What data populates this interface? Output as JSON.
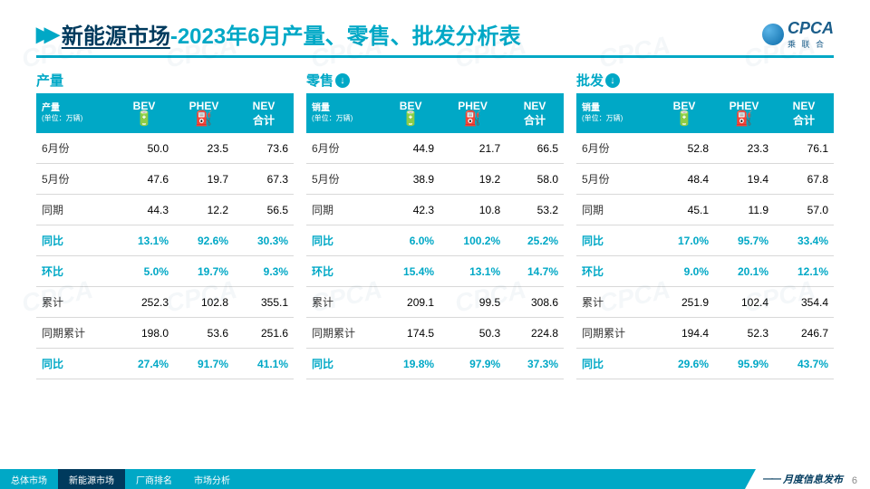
{
  "header": {
    "title_main": "新能源市场",
    "title_sub": "-2023年6月产量、零售、批发分析表",
    "logo_text": "CPCA",
    "logo_sub": "乘 联 合"
  },
  "colors": {
    "accent": "#00a8c6",
    "dark": "#003a5d",
    "row_border": "#d8d8d8"
  },
  "column_headers": {
    "bev": "BEV",
    "phev": "PHEV",
    "nev": "NEV\n合计",
    "unit": "(单位：万辆)"
  },
  "tables": [
    {
      "title": "产量",
      "arrow": false,
      "corner_label": "产量",
      "rows": [
        {
          "label": "6月份",
          "bev": "50.0",
          "phev": "23.5",
          "nev": "73.6",
          "hl": false
        },
        {
          "label": "5月份",
          "bev": "47.6",
          "phev": "19.7",
          "nev": "67.3",
          "hl": false
        },
        {
          "label": "同期",
          "bev": "44.3",
          "phev": "12.2",
          "nev": "56.5",
          "hl": false
        },
        {
          "label": "同比",
          "bev": "13.1%",
          "phev": "92.6%",
          "nev": "30.3%",
          "hl": true
        },
        {
          "label": "环比",
          "bev": "5.0%",
          "phev": "19.7%",
          "nev": "9.3%",
          "hl": true
        },
        {
          "label": "累计",
          "bev": "252.3",
          "phev": "102.8",
          "nev": "355.1",
          "hl": false
        },
        {
          "label": "同期累计",
          "bev": "198.0",
          "phev": "53.6",
          "nev": "251.6",
          "hl": false
        },
        {
          "label": "同比",
          "bev": "27.4%",
          "phev": "91.7%",
          "nev": "41.1%",
          "hl": true
        }
      ]
    },
    {
      "title": "零售",
      "arrow": true,
      "corner_label": "销量",
      "rows": [
        {
          "label": "6月份",
          "bev": "44.9",
          "phev": "21.7",
          "nev": "66.5",
          "hl": false
        },
        {
          "label": "5月份",
          "bev": "38.9",
          "phev": "19.2",
          "nev": "58.0",
          "hl": false
        },
        {
          "label": "同期",
          "bev": "42.3",
          "phev": "10.8",
          "nev": "53.2",
          "hl": false
        },
        {
          "label": "同比",
          "bev": "6.0%",
          "phev": "100.2%",
          "nev": "25.2%",
          "hl": true
        },
        {
          "label": "环比",
          "bev": "15.4%",
          "phev": "13.1%",
          "nev": "14.7%",
          "hl": true
        },
        {
          "label": "累计",
          "bev": "209.1",
          "phev": "99.5",
          "nev": "308.6",
          "hl": false
        },
        {
          "label": "同期累计",
          "bev": "174.5",
          "phev": "50.3",
          "nev": "224.8",
          "hl": false
        },
        {
          "label": "同比",
          "bev": "19.8%",
          "phev": "97.9%",
          "nev": "37.3%",
          "hl": true
        }
      ]
    },
    {
      "title": "批发",
      "arrow": true,
      "corner_label": "销量",
      "rows": [
        {
          "label": "6月份",
          "bev": "52.8",
          "phev": "23.3",
          "nev": "76.1",
          "hl": false
        },
        {
          "label": "5月份",
          "bev": "48.4",
          "phev": "19.4",
          "nev": "67.8",
          "hl": false
        },
        {
          "label": "同期",
          "bev": "45.1",
          "phev": "11.9",
          "nev": "57.0",
          "hl": false
        },
        {
          "label": "同比",
          "bev": "17.0%",
          "phev": "95.7%",
          "nev": "33.4%",
          "hl": true
        },
        {
          "label": "环比",
          "bev": "9.0%",
          "phev": "20.1%",
          "nev": "12.1%",
          "hl": true
        },
        {
          "label": "累计",
          "bev": "251.9",
          "phev": "102.4",
          "nev": "354.4",
          "hl": false
        },
        {
          "label": "同期累计",
          "bev": "194.4",
          "phev": "52.3",
          "nev": "246.7",
          "hl": false
        },
        {
          "label": "同比",
          "bev": "29.6%",
          "phev": "95.9%",
          "nev": "43.7%",
          "hl": true
        }
      ]
    }
  ],
  "footer": {
    "tabs": [
      "总体市场",
      "新能源市场",
      "厂商排名",
      "市场分析"
    ],
    "active_index": 1,
    "release": "月度信息发布",
    "page": "6"
  }
}
